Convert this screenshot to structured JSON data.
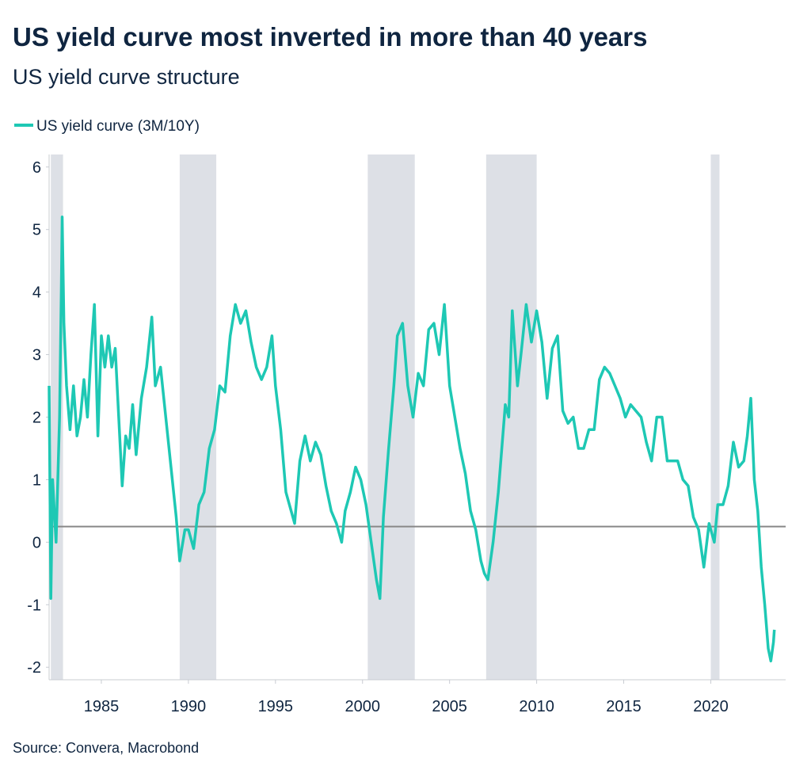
{
  "chart_data": {
    "type": "line",
    "title": "US yield curve most inverted in more than 40 years",
    "subtitle": "US yield curve structure",
    "source": "Source: Convera, Macrobond",
    "legend": "top-left",
    "xlim": [
      1982,
      2024.3
    ],
    "xticks": [
      1985,
      1990,
      1995,
      2000,
      2005,
      2010,
      2015,
      2020
    ],
    "ylim": [
      -2.2,
      6.2
    ],
    "yticks": [
      -2,
      -1,
      0,
      1,
      2,
      3,
      4,
      5,
      6
    ],
    "reference_line": {
      "value": 0.25,
      "color": "#888888"
    },
    "shaded_periods": {
      "color": "#dde0e6",
      "ranges": [
        [
          1982.1,
          1982.8
        ],
        [
          1989.5,
          1991.6
        ],
        [
          2000.3,
          2003.0
        ],
        [
          2007.1,
          2010.0
        ],
        [
          2020.0,
          2020.5
        ]
      ]
    },
    "series": [
      {
        "name": "US yield curve (3M/10Y)",
        "color": "#1ec8b4",
        "x": [
          1982.0,
          1982.1,
          1982.2,
          1982.4,
          1982.5,
          1982.6,
          1982.7,
          1982.75,
          1982.85,
          1983.0,
          1983.2,
          1983.4,
          1983.6,
          1983.8,
          1984.0,
          1984.2,
          1984.4,
          1984.6,
          1984.8,
          1985.0,
          1985.2,
          1985.4,
          1985.6,
          1985.8,
          1986.0,
          1986.2,
          1986.4,
          1986.6,
          1986.8,
          1987.0,
          1987.3,
          1987.6,
          1987.9,
          1988.1,
          1988.4,
          1988.7,
          1989.0,
          1989.3,
          1989.5,
          1989.8,
          1990.0,
          1990.3,
          1990.6,
          1990.9,
          1991.2,
          1991.5,
          1991.8,
          1992.1,
          1992.4,
          1992.7,
          1993.0,
          1993.3,
          1993.6,
          1993.9,
          1994.2,
          1994.5,
          1994.8,
          1995.0,
          1995.3,
          1995.6,
          1995.9,
          1996.1,
          1996.4,
          1996.7,
          1997.0,
          1997.3,
          1997.6,
          1997.9,
          1998.2,
          1998.5,
          1998.8,
          1999.0,
          1999.3,
          1999.6,
          1999.9,
          2000.2,
          2000.5,
          2000.8,
          2001.0,
          2001.2,
          2001.5,
          2001.8,
          2002.0,
          2002.3,
          2002.6,
          2002.9,
          2003.2,
          2003.5,
          2003.8,
          2004.1,
          2004.4,
          2004.7,
          2005.0,
          2005.3,
          2005.6,
          2005.9,
          2006.2,
          2006.5,
          2006.8,
          2007.0,
          2007.2,
          2007.5,
          2007.8,
          2008.0,
          2008.2,
          2008.4,
          2008.6,
          2008.9,
          2009.1,
          2009.4,
          2009.7,
          2010.0,
          2010.3,
          2010.6,
          2010.9,
          2011.2,
          2011.5,
          2011.8,
          2012.1,
          2012.4,
          2012.7,
          2013.0,
          2013.3,
          2013.6,
          2013.9,
          2014.2,
          2014.5,
          2014.8,
          2015.1,
          2015.4,
          2015.7,
          2016.0,
          2016.3,
          2016.6,
          2016.9,
          2017.2,
          2017.5,
          2017.8,
          2018.1,
          2018.4,
          2018.7,
          2019.0,
          2019.3,
          2019.6,
          2019.9,
          2020.2,
          2020.4,
          2020.7,
          2021.0,
          2021.3,
          2021.6,
          2021.9,
          2022.1,
          2022.3,
          2022.5,
          2022.7,
          2022.9,
          2023.1,
          2023.3,
          2023.45,
          2023.6,
          2023.65
        ],
        "values": [
          2.5,
          -0.9,
          1.0,
          0.0,
          1.0,
          2.0,
          4.0,
          5.2,
          3.5,
          2.5,
          1.8,
          2.5,
          1.7,
          2.0,
          2.6,
          2.0,
          3.0,
          3.8,
          1.7,
          3.3,
          2.8,
          3.3,
          2.8,
          3.1,
          2.0,
          0.9,
          1.7,
          1.5,
          2.2,
          1.4,
          2.3,
          2.8,
          3.6,
          2.5,
          2.8,
          2.0,
          1.2,
          0.4,
          -0.3,
          0.2,
          0.2,
          -0.1,
          0.6,
          0.8,
          1.5,
          1.8,
          2.5,
          2.4,
          3.3,
          3.8,
          3.5,
          3.7,
          3.2,
          2.8,
          2.6,
          2.8,
          3.3,
          2.5,
          1.8,
          0.8,
          0.5,
          0.3,
          1.3,
          1.7,
          1.3,
          1.6,
          1.4,
          0.9,
          0.5,
          0.3,
          0.0,
          0.5,
          0.8,
          1.2,
          1.0,
          0.6,
          0.0,
          -0.6,
          -0.9,
          0.4,
          1.5,
          2.5,
          3.3,
          3.5,
          2.5,
          2.0,
          2.7,
          2.5,
          3.4,
          3.5,
          3.0,
          3.8,
          2.5,
          2.0,
          1.5,
          1.1,
          0.5,
          0.2,
          -0.3,
          -0.5,
          -0.6,
          0.0,
          0.8,
          1.5,
          2.2,
          2.0,
          3.7,
          2.5,
          3.0,
          3.8,
          3.2,
          3.7,
          3.2,
          2.3,
          3.1,
          3.3,
          2.1,
          1.9,
          2.0,
          1.5,
          1.5,
          1.8,
          1.8,
          2.6,
          2.8,
          2.7,
          2.5,
          2.3,
          2.0,
          2.2,
          2.1,
          2.0,
          1.6,
          1.3,
          2.0,
          2.0,
          1.3,
          1.3,
          1.3,
          1.0,
          0.9,
          0.4,
          0.2,
          -0.4,
          0.3,
          0.0,
          0.6,
          0.6,
          0.9,
          1.6,
          1.2,
          1.3,
          1.7,
          2.3,
          1.0,
          0.5,
          -0.4,
          -1.0,
          -1.7,
          -1.9,
          -1.6,
          -1.4
        ]
      }
    ]
  }
}
